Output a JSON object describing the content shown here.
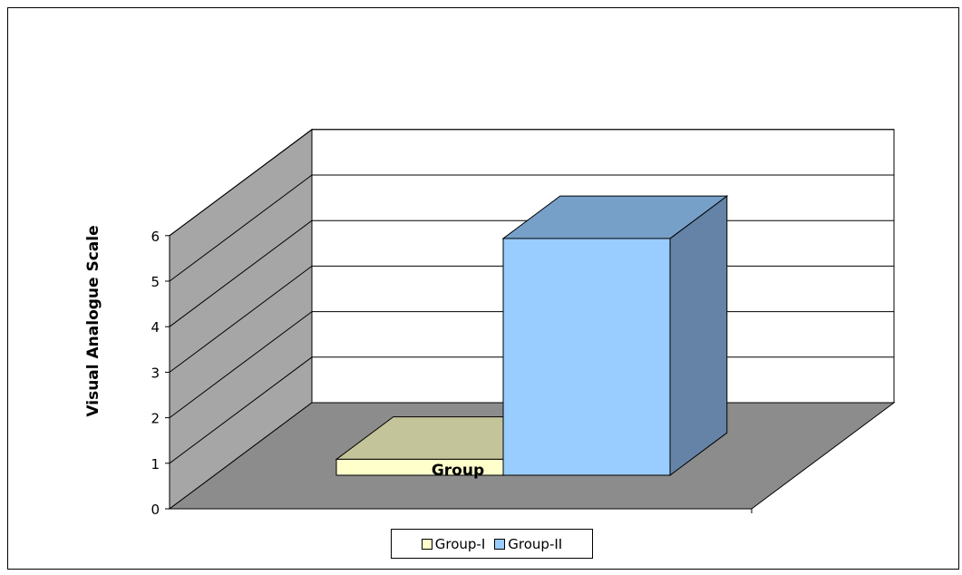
{
  "chart_data": {
    "type": "bar",
    "title": "",
    "xlabel": "",
    "ylabel": "Visual Analogue Scale",
    "ylim": [
      0,
      6
    ],
    "yticks": [
      "0",
      "1",
      "2",
      "3",
      "4",
      "5",
      "6"
    ],
    "categories": [
      "Group"
    ],
    "series": [
      {
        "name": "Group-I",
        "values": [
          0.35
        ],
        "color": "#FFFFCC"
      },
      {
        "name": "Group-II",
        "values": [
          5.2
        ],
        "color": "#99CCFF"
      }
    ],
    "legend": "bottom",
    "grid": true,
    "three_d": true
  }
}
